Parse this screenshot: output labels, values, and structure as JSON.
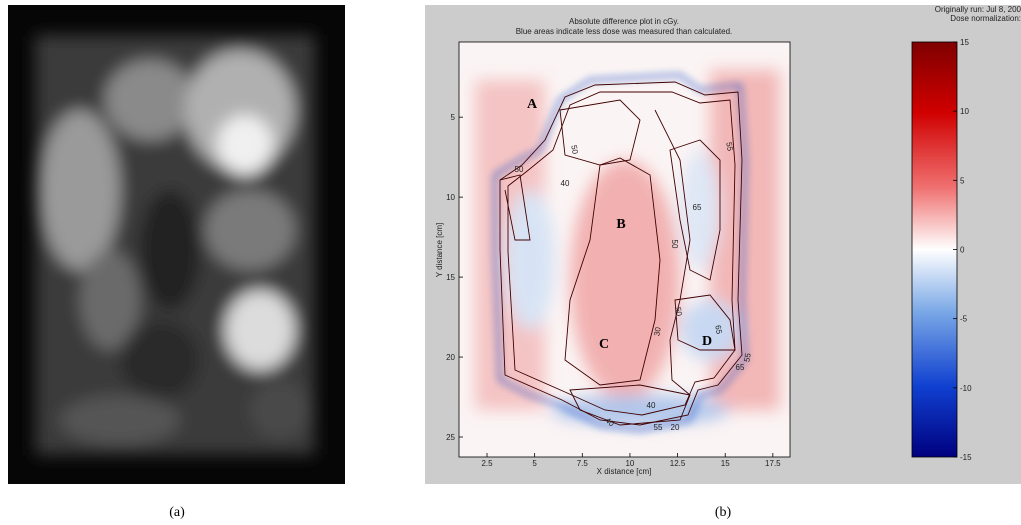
{
  "panel_a": {
    "caption": "(a)"
  },
  "panel_b": {
    "caption": "(b)",
    "title": [
      "Absolute difference plot in cGy.",
      "Blue areas indicate less dose was measured than calculated."
    ],
    "run_info": [
      "Originally run: Jul 8, 200",
      "Dose normalization:"
    ],
    "x_label": "X distance [cm]",
    "y_label": "Y distance [cm]",
    "xlim": [
      1.03,
      18.4
    ],
    "xticks": [
      2.5,
      5,
      7.5,
      10,
      12.5,
      15,
      17.5
    ],
    "ylim": [
      0.3,
      26.25
    ],
    "yticks": [
      5,
      10,
      15,
      20,
      25
    ],
    "colorbar": {
      "lim": [
        -15,
        15
      ],
      "ticks": [
        15,
        10,
        5,
        0,
        -5,
        -10,
        -15
      ]
    },
    "regions": [
      "A",
      "B",
      "C",
      "D"
    ],
    "contour_labels": [
      "50",
      "50",
      "40",
      "65",
      "55",
      "50",
      "65",
      "65",
      "50",
      "30",
      "55",
      "40",
      "40",
      "55",
      "20"
    ]
  }
}
